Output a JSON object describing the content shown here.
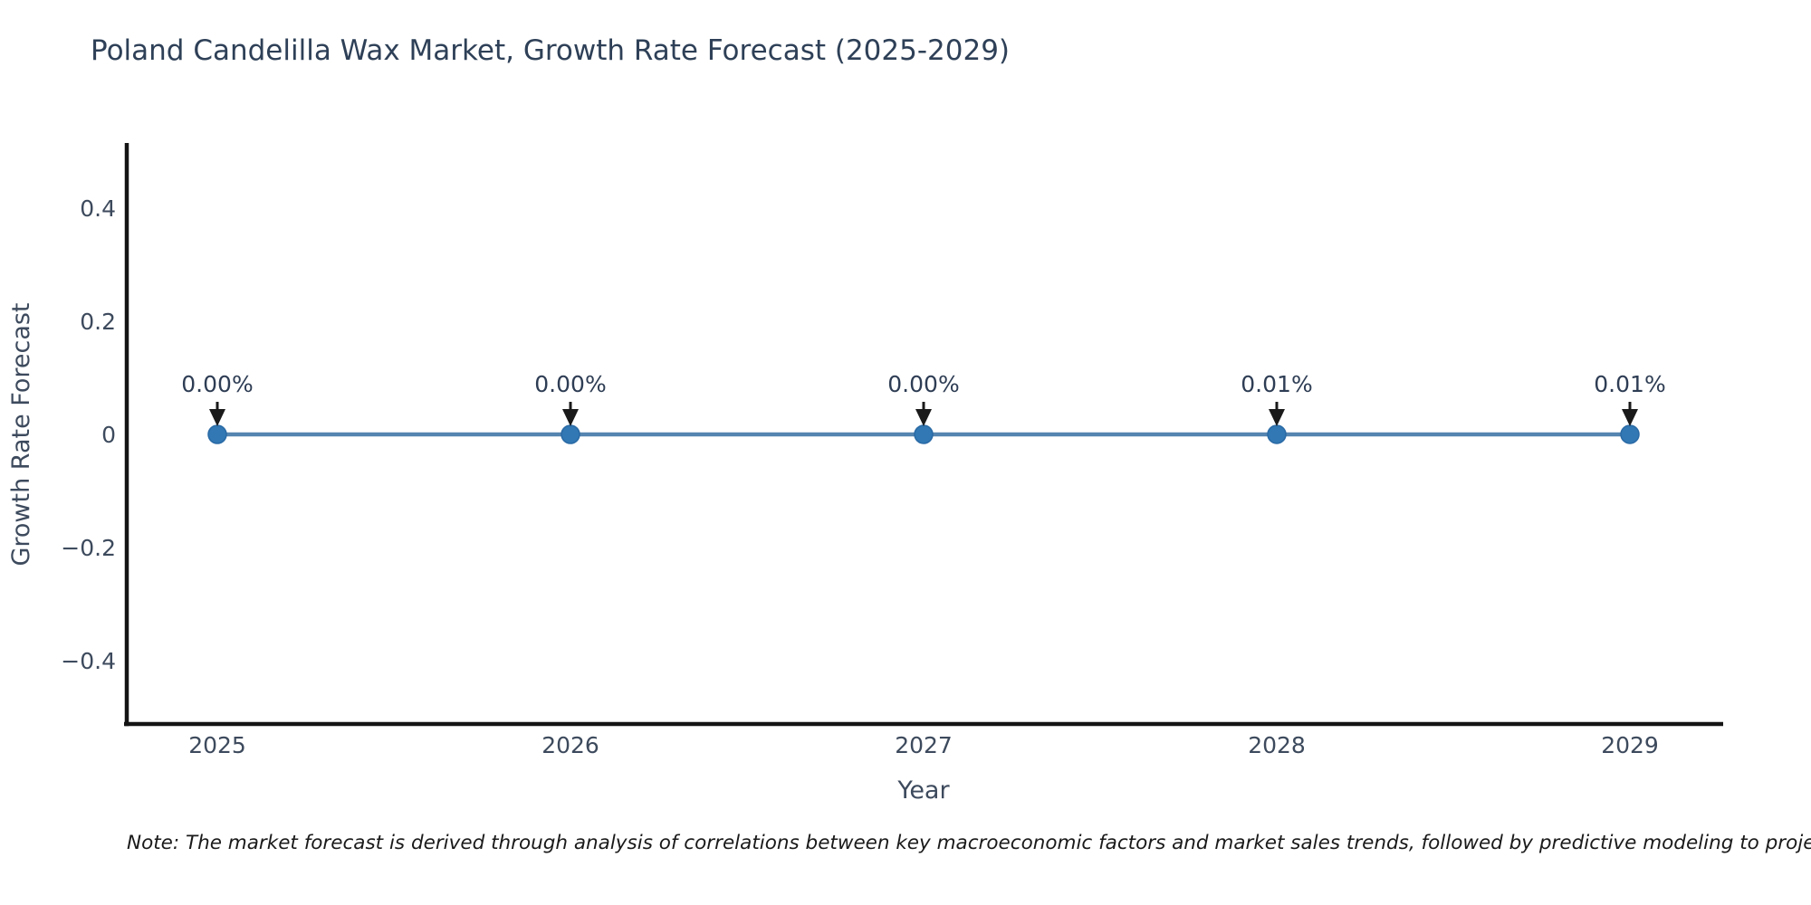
{
  "page": {
    "background": "#ffffff"
  },
  "chart_data": {
    "type": "line",
    "title": "Poland Candelilla Wax Market, Growth Rate Forecast (2025-2029)",
    "xlabel": "Year",
    "ylabel": "Growth Rate Forecast",
    "categories": [
      "2025",
      "2026",
      "2027",
      "2028",
      "2029"
    ],
    "x": [
      2025,
      2026,
      2027,
      2028,
      2029
    ],
    "series": [
      {
        "name": "Growth Rate Forecast",
        "values": [
          0.0,
          0.0,
          0.0,
          0.0001,
          0.0001
        ],
        "point_labels": [
          "0.00%",
          "0.00%",
          "0.00%",
          "0.01%",
          "0.01%"
        ]
      }
    ],
    "ylim": [
      -0.512,
      0.512
    ],
    "yticks": [
      0.4,
      0.2,
      0,
      -0.2,
      -0.4
    ],
    "ytick_labels": [
      "0.4",
      "0.2",
      "0",
      "−0.2",
      "−0.4"
    ],
    "grid": false,
    "legend_position": "none",
    "annotation_style": "down-arrow",
    "colors": {
      "line": "#5585b0",
      "marker_fill": "#3178b4",
      "marker_edge": "#2a6aa5",
      "axis_line": "#141414",
      "title_text": "#2e4057",
      "tick_text": "#3d4a5d",
      "annotation_text": "#2e3d54",
      "arrow": "#1a1a1a",
      "note_text": "#1a1a1a"
    }
  },
  "footnote": {
    "text": "Note: The market forecast is derived through analysis of correlations between key macroeconomic factors and market sales trends, followed by predictive modeling to project future sales"
  }
}
